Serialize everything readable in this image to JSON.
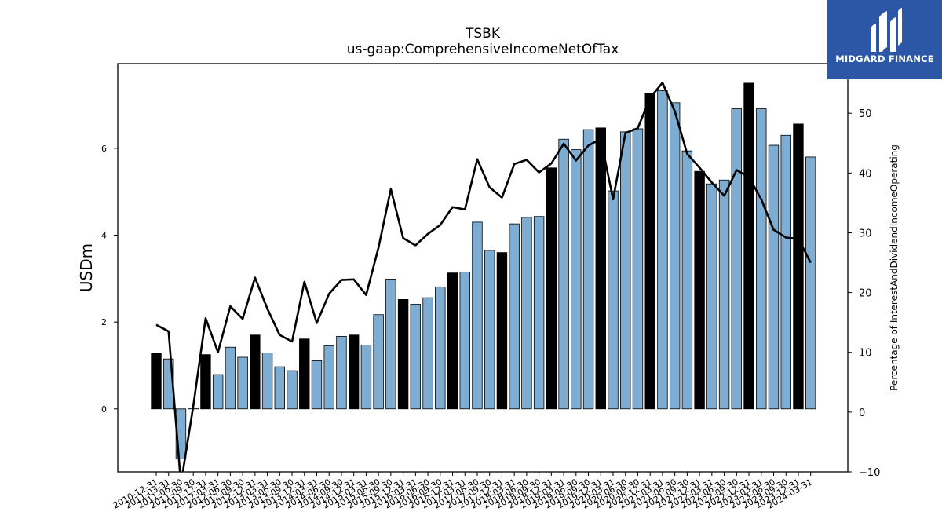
{
  "chart_data": {
    "type": "bar",
    "title": "TSBK",
    "subtitle": "us-gaap:ComprehensiveIncomeNetOfTax",
    "ylabel": "USDm",
    "ylabel_right": "Percentage of InterestAndDividendIncomeOperating",
    "ylim": [
      -1.45,
      7.95
    ],
    "ylim_right": [
      -10,
      58.3
    ],
    "yticks": [
      0,
      2,
      4,
      6
    ],
    "yticks_right": [
      -10,
      0,
      10,
      20,
      30,
      40,
      50
    ],
    "categories": [
      "2010-12-31",
      "2011-03-31",
      "2011-06-30",
      "2011-09-30",
      "2011-12-31",
      "2012-03-31",
      "2012-06-30",
      "2012-09-30",
      "2012-12-31",
      "2013-03-31",
      "2013-06-30",
      "2013-09-30",
      "2013-12-31",
      "2014-03-31",
      "2014-06-30",
      "2014-09-30",
      "2014-12-31",
      "2015-03-31",
      "2015-06-30",
      "2015-09-30",
      "2015-12-31",
      "2016-03-31",
      "2016-06-30",
      "2016-09-30",
      "2016-12-31",
      "2017-03-31",
      "2017-06-30",
      "2017-09-30",
      "2017-12-31",
      "2018-03-31",
      "2018-06-30",
      "2018-09-30",
      "2018-12-31",
      "2019-03-31",
      "2019-06-30",
      "2019-09-30",
      "2019-12-31",
      "2020-03-31",
      "2020-06-30",
      "2020-09-30",
      "2020-12-31",
      "2021-03-31",
      "2021-06-30",
      "2021-09-30",
      "2021-12-31",
      "2022-03-31",
      "2022-06-30",
      "2022-09-30",
      "2022-12-31",
      "2023-03-31",
      "2023-06-30",
      "2023-09-30",
      "2023-12-31",
      "2024-03-31"
    ],
    "series": [
      {
        "type": "bar",
        "values": [
          1.29,
          1.15,
          -1.15,
          0.02,
          1.25,
          0.79,
          1.42,
          1.19,
          1.7,
          1.29,
          0.97,
          0.88,
          1.61,
          1.11,
          1.45,
          1.67,
          1.7,
          1.47,
          2.17,
          2.99,
          2.52,
          2.41,
          2.56,
          2.81,
          3.13,
          3.15,
          4.3,
          3.65,
          3.6,
          4.26,
          4.41,
          4.43,
          5.55,
          6.21,
          5.97,
          6.43,
          6.47,
          5.02,
          6.38,
          6.45,
          7.27,
          7.33,
          7.05,
          5.94,
          5.47,
          5.18,
          5.27,
          6.91,
          7.5,
          6.91,
          6.07,
          6.3,
          6.56,
          5.8
        ]
      },
      {
        "type": "line",
        "values": [
          14.6,
          13.5,
          -12,
          1,
          15.7,
          10,
          17.7,
          15.6,
          22.5,
          17.3,
          12.9,
          11.8,
          21.8,
          14.9,
          19.8,
          22.1,
          22.2,
          19.6,
          27.5,
          37.3,
          29.1,
          27.9,
          29.8,
          31.3,
          34.3,
          33.9,
          42.3,
          37.6,
          35.9,
          41.5,
          42.2,
          40.1,
          41.6,
          44.9,
          42.1,
          44.6,
          45.7,
          35.6,
          46.7,
          47.5,
          52.6,
          55.1,
          50.3,
          43.2,
          40.9,
          38.4,
          36.2,
          40.5,
          39.3,
          35.6,
          30.5,
          29.2,
          29.0,
          25.0
        ]
      }
    ],
    "grid": false,
    "legend": "none",
    "colors": {
      "bar_default": "#7eadd1",
      "bar_highlight": "#000000",
      "line": "#000000",
      "edge": "#000000"
    }
  },
  "logo": {
    "text": "MIDGARD FINANCE",
    "background": "#2b57a6"
  }
}
